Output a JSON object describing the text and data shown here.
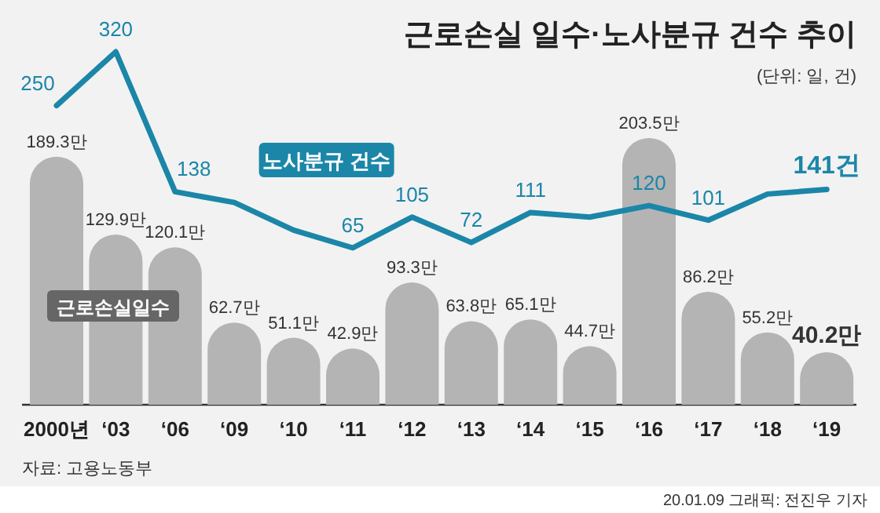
{
  "chart_data": {
    "type": "bar",
    "title": "근로손실 일수·노사분규 건수 추이",
    "subtitle": "(단위: 일, 건)",
    "categories": [
      "2000년",
      "‘03",
      "‘06",
      "‘09",
      "‘10",
      "‘11",
      "‘12",
      "‘13",
      "‘14",
      "‘15",
      "‘16",
      "‘17",
      "‘18",
      "‘19"
    ],
    "series": [
      {
        "name": "근로손실일수",
        "color": "#b4b4b4",
        "values": [
          189.3,
          129.9,
          120.1,
          62.7,
          51.1,
          42.9,
          93.3,
          63.8,
          65.1,
          44.7,
          203.5,
          86.2,
          55.2,
          40.2
        ],
        "value_labels": [
          "189.3만",
          "129.9만",
          "120.1만",
          "62.7만",
          "51.1만",
          "42.9만",
          "93.3만",
          "63.8만",
          "65.1만",
          "44.7만",
          "203.5만",
          "86.2만",
          "55.2만",
          "40.2만"
        ]
      },
      {
        "name": "노사분규 건수",
        "type": "line",
        "axis": "y2",
        "color": "#1b86a8",
        "values": [
          250,
          320,
          138,
          124,
          88,
          65,
          105,
          72,
          111,
          105,
          120,
          101,
          135,
          141
        ],
        "value_labels": [
          "250",
          "320",
          "138",
          null,
          null,
          "65",
          "105",
          "72",
          "111",
          null,
          "120",
          "101",
          null,
          "141건"
        ]
      }
    ],
    "annotations": [
      "자료: 고용노동부",
      "20.01.09 그래픽: 전진우 기자"
    ]
  }
}
